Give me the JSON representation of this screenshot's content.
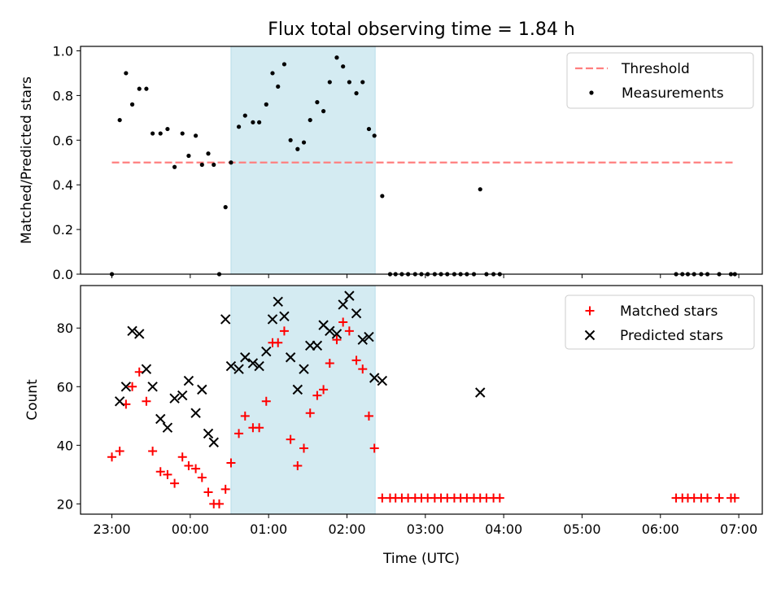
{
  "chart_data": [
    {
      "type": "scatter",
      "title": "Flux total observing time = 1.84 h",
      "ylabel": "Matched/Predicted stars",
      "xlabel": "",
      "x_unit": "hours since 23:00 UTC",
      "xlim": [
        -0.4,
        8.3
      ],
      "ylim": [
        0.0,
        1.02
      ],
      "xticks": [
        0,
        1,
        2,
        3,
        4,
        5,
        6,
        7,
        8
      ],
      "xtick_labels": [],
      "yticks": [
        0.0,
        0.2,
        0.4,
        0.6,
        0.8,
        1.0
      ],
      "ytick_labels": [
        "0.0",
        "0.2",
        "0.4",
        "0.6",
        "0.8",
        "1.0"
      ],
      "shaded_region": {
        "x_start": 1.52,
        "x_end": 3.36,
        "color": "#d4ebf2"
      },
      "legend_placement": "top-right",
      "grid": false,
      "series": [
        {
          "name": "Threshold",
          "style": "dashed-line",
          "color": "#ff7f7f",
          "x": [
            0.0,
            7.95
          ],
          "y": [
            0.5,
            0.5
          ]
        },
        {
          "name": "Measurements",
          "style": "dot",
          "color": "#000000",
          "points": [
            [
              0.0,
              0.0
            ],
            [
              0.1,
              0.69
            ],
            [
              0.18,
              0.9
            ],
            [
              0.26,
              0.76
            ],
            [
              0.35,
              0.83
            ],
            [
              0.44,
              0.83
            ],
            [
              0.52,
              0.63
            ],
            [
              0.62,
              0.63
            ],
            [
              0.71,
              0.65
            ],
            [
              0.8,
              0.48
            ],
            [
              0.9,
              0.63
            ],
            [
              0.98,
              0.53
            ],
            [
              1.07,
              0.62
            ],
            [
              1.15,
              0.49
            ],
            [
              1.23,
              0.54
            ],
            [
              1.3,
              0.49
            ],
            [
              1.37,
              0.0
            ],
            [
              1.45,
              0.3
            ],
            [
              1.52,
              0.5
            ],
            [
              1.62,
              0.66
            ],
            [
              1.7,
              0.71
            ],
            [
              1.8,
              0.68
            ],
            [
              1.88,
              0.68
            ],
            [
              1.97,
              0.76
            ],
            [
              2.05,
              0.9
            ],
            [
              2.12,
              0.84
            ],
            [
              2.2,
              0.94
            ],
            [
              2.28,
              0.6
            ],
            [
              2.37,
              0.56
            ],
            [
              2.45,
              0.59
            ],
            [
              2.53,
              0.69
            ],
            [
              2.62,
              0.77
            ],
            [
              2.7,
              0.73
            ],
            [
              2.78,
              0.86
            ],
            [
              2.87,
              0.97
            ],
            [
              2.95,
              0.93
            ],
            [
              3.03,
              0.86
            ],
            [
              3.12,
              0.81
            ],
            [
              3.2,
              0.86
            ],
            [
              3.28,
              0.65
            ],
            [
              3.35,
              0.62
            ],
            [
              3.45,
              0.35
            ],
            [
              3.55,
              0.0
            ],
            [
              3.62,
              0.0
            ],
            [
              3.7,
              0.0
            ],
            [
              3.78,
              0.0
            ],
            [
              3.87,
              0.0
            ],
            [
              3.95,
              0.0
            ],
            [
              4.03,
              0.0
            ],
            [
              4.12,
              0.0
            ],
            [
              4.2,
              0.0
            ],
            [
              4.28,
              0.0
            ],
            [
              4.37,
              0.0
            ],
            [
              4.45,
              0.0
            ],
            [
              4.53,
              0.0
            ],
            [
              4.62,
              0.0
            ],
            [
              4.7,
              0.38
            ],
            [
              4.78,
              0.0
            ],
            [
              4.87,
              0.0
            ],
            [
              4.95,
              0.0
            ],
            [
              7.2,
              0.0
            ],
            [
              7.28,
              0.0
            ],
            [
              7.35,
              0.0
            ],
            [
              7.43,
              0.0
            ],
            [
              7.52,
              0.0
            ],
            [
              7.6,
              0.0
            ],
            [
              7.75,
              0.0
            ],
            [
              7.9,
              0.0
            ],
            [
              7.95,
              0.0
            ]
          ]
        }
      ]
    },
    {
      "type": "scatter",
      "title": "",
      "ylabel": "Count",
      "xlabel": "Time (UTC)",
      "x_unit": "hours since 23:00 UTC",
      "xlim": [
        -0.4,
        8.3
      ],
      "ylim": [
        16.5,
        94.5
      ],
      "xticks": [
        0,
        1,
        2,
        3,
        4,
        5,
        6,
        7,
        8
      ],
      "xtick_labels": [
        "23:00",
        "00:00",
        "01:00",
        "02:00",
        "03:00",
        "04:00",
        "05:00",
        "06:00",
        "07:00"
      ],
      "yticks": [
        20,
        40,
        60,
        80
      ],
      "ytick_labels": [
        "20",
        "40",
        "60",
        "80"
      ],
      "shaded_region": {
        "x_start": 1.52,
        "x_end": 3.36,
        "color": "#d4ebf2"
      },
      "legend_placement": "top-right",
      "grid": false,
      "series": [
        {
          "name": "Matched stars",
          "style": "plus",
          "color": "#ff0000",
          "points": [
            [
              0.0,
              36
            ],
            [
              0.1,
              38
            ],
            [
              0.18,
              54
            ],
            [
              0.26,
              60
            ],
            [
              0.35,
              65
            ],
            [
              0.44,
              55
            ],
            [
              0.52,
              38
            ],
            [
              0.62,
              31
            ],
            [
              0.71,
              30
            ],
            [
              0.8,
              27
            ],
            [
              0.9,
              36
            ],
            [
              0.98,
              33
            ],
            [
              1.07,
              32
            ],
            [
              1.15,
              29
            ],
            [
              1.23,
              24
            ],
            [
              1.3,
              20
            ],
            [
              1.37,
              20
            ],
            [
              1.45,
              25
            ],
            [
              1.52,
              34
            ],
            [
              1.62,
              44
            ],
            [
              1.7,
              50
            ],
            [
              1.8,
              46
            ],
            [
              1.88,
              46
            ],
            [
              1.97,
              55
            ],
            [
              2.05,
              75
            ],
            [
              2.12,
              75
            ],
            [
              2.2,
              79
            ],
            [
              2.28,
              42
            ],
            [
              2.37,
              33
            ],
            [
              2.45,
              39
            ],
            [
              2.53,
              51
            ],
            [
              2.62,
              57
            ],
            [
              2.7,
              59
            ],
            [
              2.78,
              68
            ],
            [
              2.87,
              76
            ],
            [
              2.95,
              82
            ],
            [
              3.03,
              79
            ],
            [
              3.12,
              69
            ],
            [
              3.2,
              66
            ],
            [
              3.28,
              50
            ],
            [
              3.35,
              39
            ],
            [
              3.45,
              22
            ],
            [
              3.55,
              22
            ],
            [
              3.62,
              22
            ],
            [
              3.7,
              22
            ],
            [
              3.78,
              22
            ],
            [
              3.87,
              22
            ],
            [
              3.95,
              22
            ],
            [
              4.03,
              22
            ],
            [
              4.12,
              22
            ],
            [
              4.2,
              22
            ],
            [
              4.28,
              22
            ],
            [
              4.37,
              22
            ],
            [
              4.45,
              22
            ],
            [
              4.53,
              22
            ],
            [
              4.62,
              22
            ],
            [
              4.7,
              22
            ],
            [
              4.78,
              22
            ],
            [
              4.87,
              22
            ],
            [
              4.95,
              22
            ],
            [
              7.2,
              22
            ],
            [
              7.28,
              22
            ],
            [
              7.35,
              22
            ],
            [
              7.43,
              22
            ],
            [
              7.52,
              22
            ],
            [
              7.6,
              22
            ],
            [
              7.75,
              22
            ],
            [
              7.9,
              22
            ],
            [
              7.95,
              22
            ]
          ]
        },
        {
          "name": "Predicted stars",
          "style": "x",
          "color": "#000000",
          "points": [
            [
              0.1,
              55
            ],
            [
              0.18,
              60
            ],
            [
              0.26,
              79
            ],
            [
              0.35,
              78
            ],
            [
              0.44,
              66
            ],
            [
              0.52,
              60
            ],
            [
              0.62,
              49
            ],
            [
              0.71,
              46
            ],
            [
              0.8,
              56
            ],
            [
              0.9,
              57
            ],
            [
              0.98,
              62
            ],
            [
              1.07,
              51
            ],
            [
              1.15,
              59
            ],
            [
              1.23,
              44
            ],
            [
              1.3,
              41
            ],
            [
              1.45,
              83
            ],
            [
              1.52,
              67
            ],
            [
              1.62,
              66
            ],
            [
              1.7,
              70
            ],
            [
              1.8,
              68
            ],
            [
              1.88,
              67
            ],
            [
              1.97,
              72
            ],
            [
              2.05,
              83
            ],
            [
              2.12,
              89
            ],
            [
              2.2,
              84
            ],
            [
              2.28,
              70
            ],
            [
              2.37,
              59
            ],
            [
              2.45,
              66
            ],
            [
              2.53,
              74
            ],
            [
              2.62,
              74
            ],
            [
              2.7,
              81
            ],
            [
              2.78,
              79
            ],
            [
              2.87,
              78
            ],
            [
              2.95,
              88
            ],
            [
              3.03,
              91
            ],
            [
              3.12,
              85
            ],
            [
              3.2,
              76
            ],
            [
              3.28,
              77
            ],
            [
              3.35,
              63
            ],
            [
              3.45,
              62
            ],
            [
              4.7,
              58
            ]
          ]
        }
      ]
    }
  ]
}
